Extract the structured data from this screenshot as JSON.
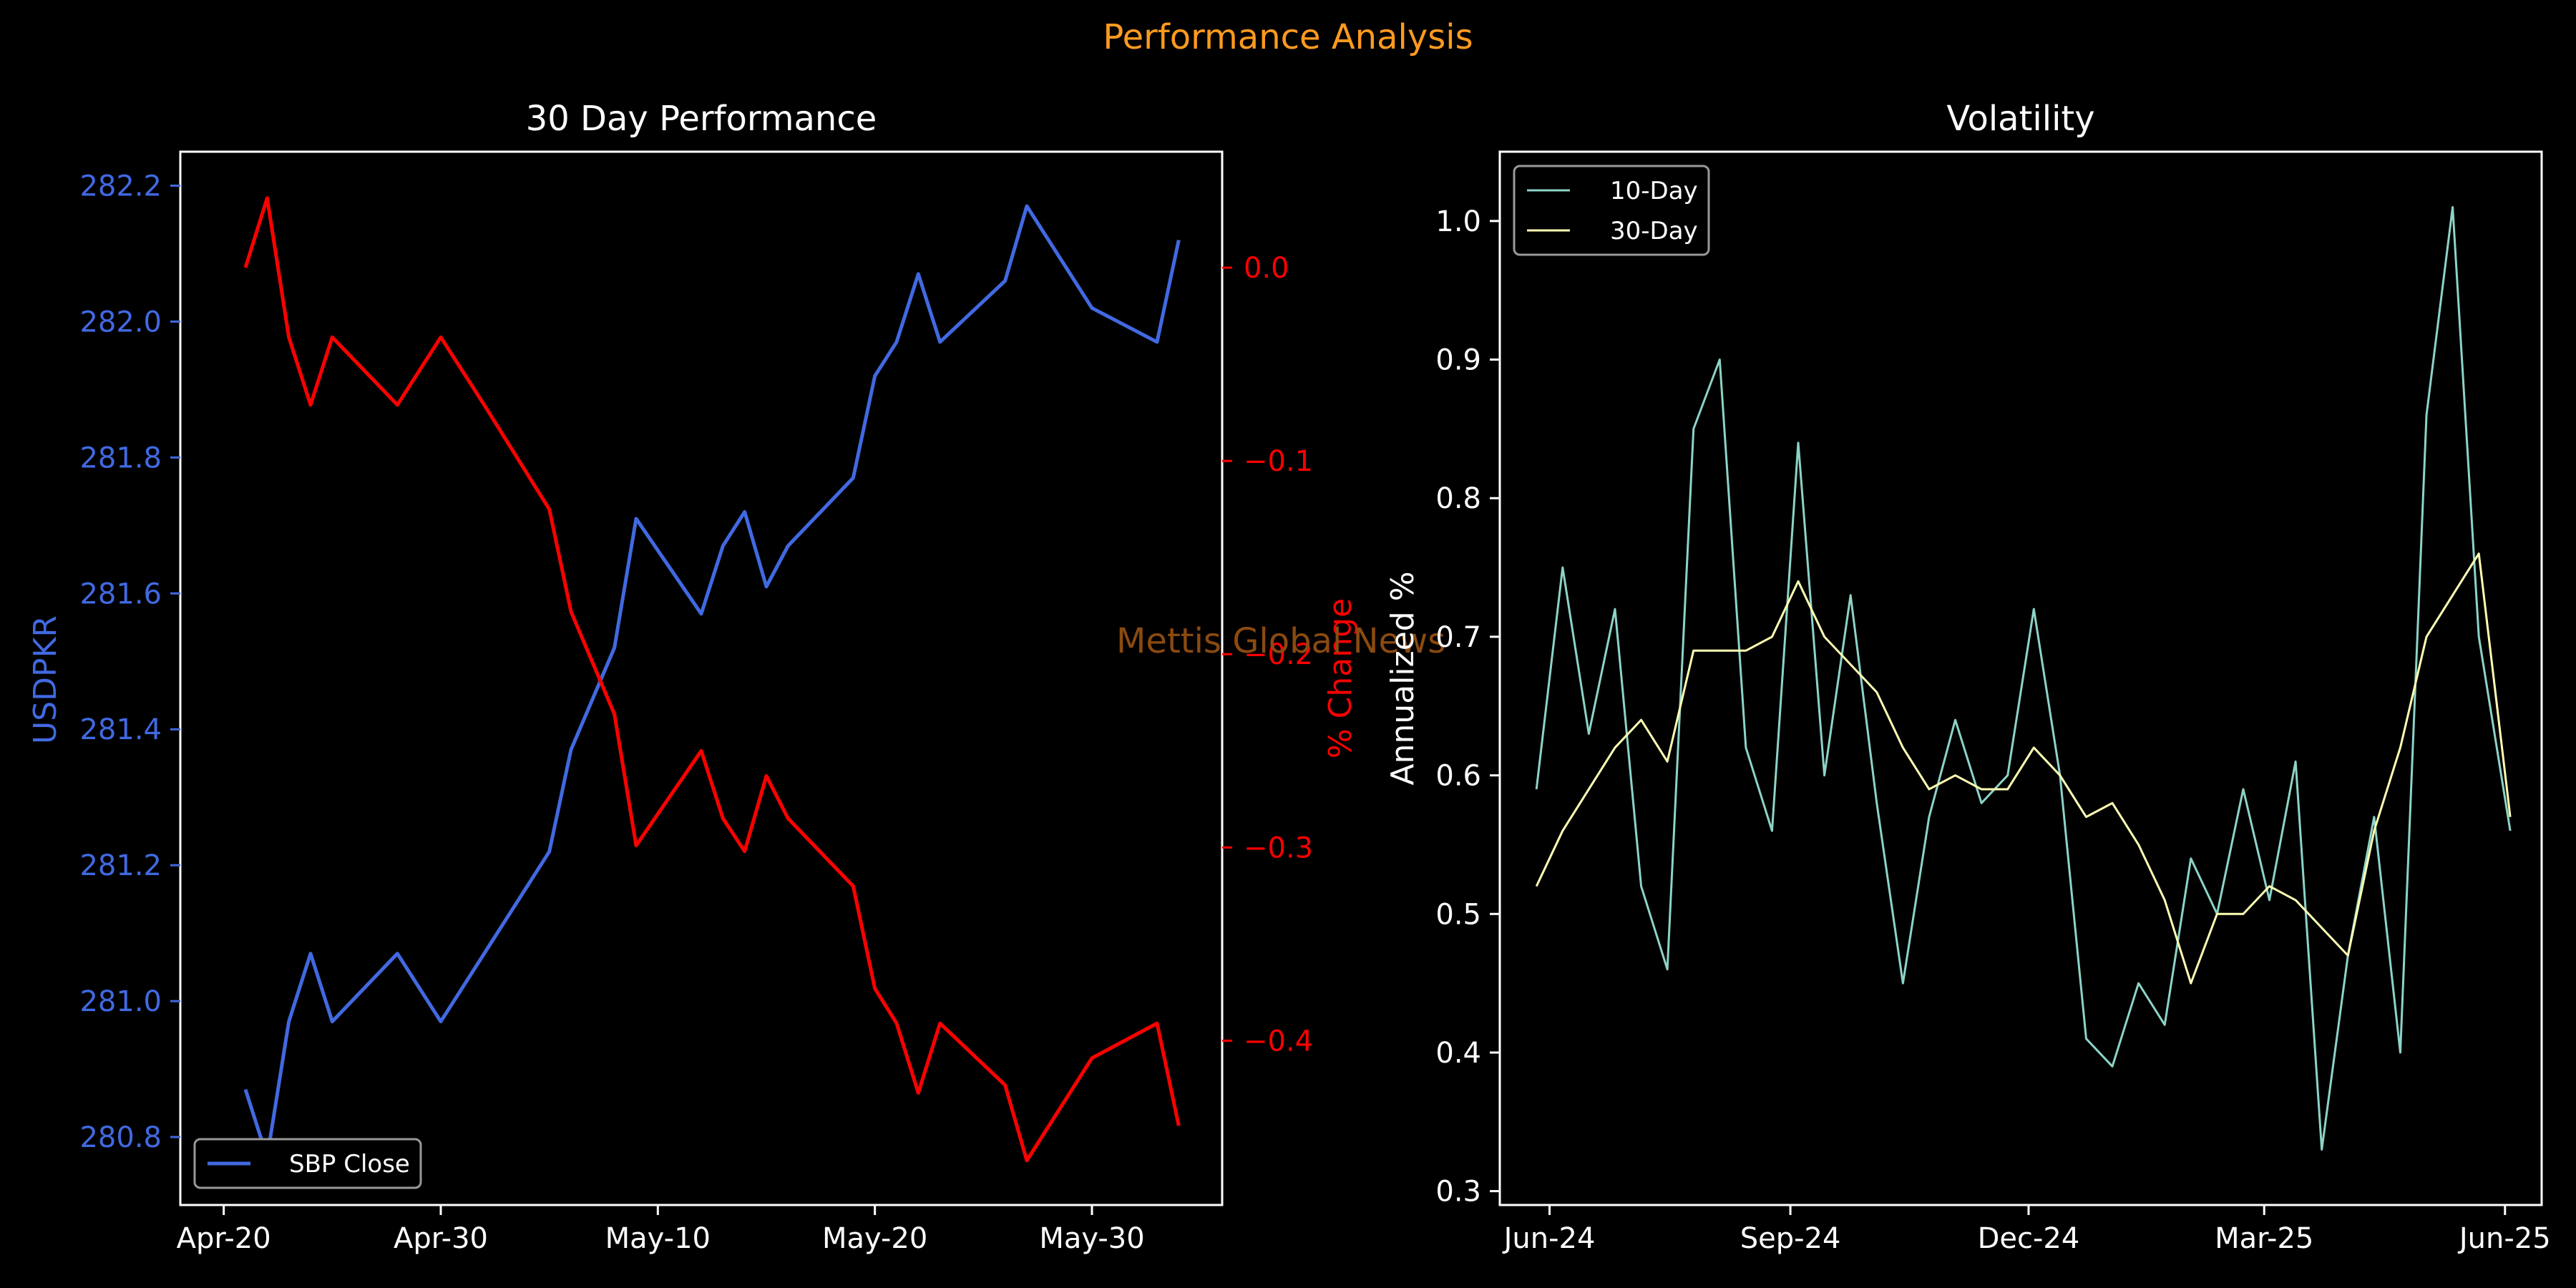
{
  "suptitle": "Performance Analysis",
  "watermark": "Mettis Global News",
  "colors": {
    "background": "#000000",
    "usd_line": "#4169e1",
    "pct_line": "#ff0000",
    "vol10": "#8dd3c7",
    "vol30": "#ffffb3",
    "text": "#ffffff",
    "suptitle": "#ff9a1f",
    "watermark": "#8a4a10"
  },
  "chart_data": [
    {
      "type": "line",
      "title": "30 Day Performance",
      "xlabel": "",
      "ylabel": "USDPKR",
      "ylabel_right": "% Change",
      "legend_position": "lower-left",
      "grid": false,
      "x_ticks": [
        "Apr-20",
        "Apr-30",
        "May-10",
        "May-20",
        "May-30"
      ],
      "ylim": [
        280.7,
        282.25
      ],
      "y_ticks": [
        "280.8",
        "281.0",
        "281.2",
        "281.4",
        "281.6",
        "281.8",
        "282.0",
        "282.2"
      ],
      "ylim_right": [
        -0.485,
        0.06
      ],
      "y_ticks_right": [
        "0.0",
        "−0.1",
        "−0.2",
        "−0.3",
        "−0.4"
      ],
      "x": [
        "2025-04-21",
        "2025-04-22",
        "2025-04-23",
        "2025-04-24",
        "2025-04-25",
        "2025-04-28",
        "2025-04-30",
        "2025-05-02",
        "2025-05-05",
        "2025-05-06",
        "2025-05-08",
        "2025-05-09",
        "2025-05-12",
        "2025-05-13",
        "2025-05-14",
        "2025-05-15",
        "2025-05-16",
        "2025-05-19",
        "2025-05-20",
        "2025-05-21",
        "2025-05-22",
        "2025-05-23",
        "2025-05-26",
        "2025-05-27",
        "2025-05-30",
        "2025-06-02",
        "2025-06-03"
      ],
      "series": [
        {
          "name": "SBP Close",
          "axis": "left",
          "values": [
            280.87,
            280.77,
            280.97,
            281.07,
            280.97,
            281.07,
            280.97,
            281.07,
            281.22,
            281.37,
            281.52,
            281.71,
            281.57,
            281.67,
            281.72,
            281.61,
            281.67,
            281.77,
            281.92,
            281.97,
            282.07,
            281.97,
            282.06,
            282.17,
            282.02,
            281.97,
            282.12
          ]
        },
        {
          "name": "% Change",
          "axis": "right",
          "values": [
            0.0,
            0.036,
            -0.036,
            -0.071,
            -0.036,
            -0.071,
            -0.036,
            -0.071,
            -0.125,
            -0.178,
            -0.231,
            -0.299,
            -0.25,
            -0.285,
            -0.302,
            -0.263,
            -0.285,
            -0.32,
            -0.373,
            -0.391,
            -0.427,
            -0.391,
            -0.423,
            -0.462,
            -0.409,
            -0.391,
            -0.444
          ]
        }
      ]
    },
    {
      "type": "line",
      "title": "Volatility",
      "xlabel": "",
      "ylabel": "Annualized %",
      "legend_position": "top-left",
      "grid": false,
      "x_ticks": [
        "Jun-24",
        "Sep-24",
        "Dec-24",
        "Mar-25",
        "Jun-25"
      ],
      "xlim": [
        "2024-05-13",
        "2025-06-15"
      ],
      "ylim": [
        0.29,
        1.05
      ],
      "y_ticks": [
        "0.3",
        "0.4",
        "0.5",
        "0.6",
        "0.7",
        "0.8",
        "0.9",
        "1.0"
      ],
      "x": [
        "2024-05-27",
        "2024-06-06",
        "2024-06-16",
        "2024-06-26",
        "2024-07-06",
        "2024-07-16",
        "2024-07-26",
        "2024-08-05",
        "2024-08-15",
        "2024-08-25",
        "2024-09-04",
        "2024-09-14",
        "2024-09-24",
        "2024-10-04",
        "2024-10-14",
        "2024-10-24",
        "2024-11-03",
        "2024-11-13",
        "2024-11-23",
        "2024-12-03",
        "2024-12-13",
        "2024-12-23",
        "2025-01-02",
        "2025-01-12",
        "2025-01-22",
        "2025-02-01",
        "2025-02-11",
        "2025-02-21",
        "2025-03-03",
        "2025-03-13",
        "2025-03-23",
        "2025-04-02",
        "2025-04-12",
        "2025-04-22",
        "2025-05-02",
        "2025-05-12",
        "2025-05-22",
        "2025-06-03"
      ],
      "series": [
        {
          "name": "10-Day",
          "values": [
            0.59,
            0.75,
            0.63,
            0.72,
            0.52,
            0.46,
            0.85,
            0.9,
            0.62,
            0.56,
            0.84,
            0.6,
            0.73,
            0.58,
            0.45,
            0.57,
            0.64,
            0.58,
            0.6,
            0.72,
            0.6,
            0.41,
            0.39,
            0.45,
            0.42,
            0.54,
            0.5,
            0.59,
            0.51,
            0.61,
            0.33,
            0.47,
            0.57,
            0.4,
            0.86,
            1.01,
            0.7,
            0.56
          ]
        },
        {
          "name": "30-Day",
          "values": [
            0.52,
            0.56,
            0.59,
            0.62,
            0.64,
            0.61,
            0.69,
            0.69,
            0.69,
            0.7,
            0.74,
            0.7,
            0.68,
            0.66,
            0.62,
            0.59,
            0.6,
            0.59,
            0.59,
            0.62,
            0.6,
            0.57,
            0.58,
            0.55,
            0.51,
            0.45,
            0.5,
            0.5,
            0.52,
            0.51,
            0.49,
            0.47,
            0.56,
            0.62,
            0.7,
            0.73,
            0.76,
            0.57
          ]
        }
      ]
    }
  ]
}
